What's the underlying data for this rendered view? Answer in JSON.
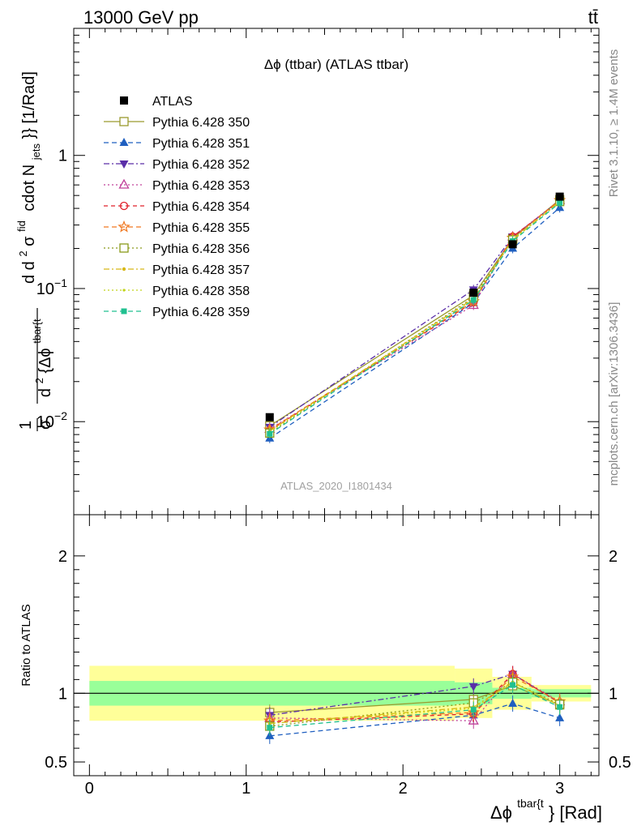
{
  "header": {
    "left": "13000 GeV pp",
    "right": "tt̄"
  },
  "side_labels": {
    "rivet": "Rivet 3.1.10, ≥ 1.4M events",
    "mcplots": "mcplots.cern.ch [arXiv:1306.3436]"
  },
  "chart_data": [
    {
      "type": "line",
      "title": "Δϕ (ttbar) (ATLAS ttbar)",
      "watermark": "ATLAS_2020_I1801434",
      "ylabel": "d¹/σ d²σfid/d²{Δϕtbar{t}} cdot Njets}} [1/Rad]",
      "ylabel_parts": {
        "frac1_num": "1",
        "frac1_den": "σ",
        "d": "d",
        "frac2_num_d": "d",
        "frac2_num_exp": "2",
        "frac2_num_sigma": "σ",
        "frac2_num_sup": "fid",
        "frac2_den_d": "d",
        "frac2_den_exp": "2",
        "frac2_den_body": "{Δϕ",
        "frac2_den_sup": "tbar{t",
        "tail_a": "cdot N",
        "tail_sub": "jets",
        "tail_b": "}} [1/Rad]"
      },
      "xlabel_parts": {
        "sym": "Δϕ",
        "sup": "tbar{t",
        "tail": "} [Rad]"
      },
      "xlim": [
        -0.1,
        3.25
      ],
      "ylim": [
        0.002,
        9.0
      ],
      "yscale": "log",
      "y_ticks": [
        {
          "value": 0.01,
          "base": "10",
          "exp": "−2"
        },
        {
          "value": 0.1,
          "base": "10",
          "exp": "−1"
        },
        {
          "value": 1,
          "base": "1",
          "exp": ""
        }
      ],
      "x": [
        1.15,
        2.45,
        2.7,
        3.0
      ],
      "data": {
        "name": "ATLAS",
        "values": [
          0.0108,
          0.093,
          0.215,
          0.49
        ]
      },
      "legend_position": "top-left",
      "series": [
        {
          "name": "Pythia 6.428 350",
          "color": "#9a9a2e",
          "marker": "open-square",
          "dash": "",
          "values": [
            0.0093,
            0.089,
            0.238,
            0.465
          ]
        },
        {
          "name": "Pythia 6.428 351",
          "color": "#1f5fc0",
          "marker": "filled-triangle-up",
          "dash": "6,4",
          "values": [
            0.0075,
            0.078,
            0.2,
            0.405
          ]
        },
        {
          "name": "Pythia 6.428 352",
          "color": "#5a2ea8",
          "marker": "filled-triangle-down",
          "dash": "7,3,2,3",
          "values": [
            0.0091,
            0.098,
            0.245,
            0.455
          ]
        },
        {
          "name": "Pythia 6.428 353",
          "color": "#c0409a",
          "marker": "open-triangle-up",
          "dash": "2,3",
          "values": [
            0.0088,
            0.075,
            0.245,
            0.46
          ]
        },
        {
          "name": "Pythia 6.428 354",
          "color": "#e0202a",
          "marker": "open-circle",
          "dash": "5,4",
          "values": [
            0.0086,
            0.079,
            0.245,
            0.455
          ]
        },
        {
          "name": "Pythia 6.428 355",
          "color": "#f07820",
          "marker": "open-star",
          "dash": "6,4",
          "values": [
            0.0087,
            0.08,
            0.24,
            0.46
          ]
        },
        {
          "name": "Pythia 6.428 356",
          "color": "#8a9a1a",
          "marker": "open-square",
          "dash": "2,3",
          "values": [
            0.0082,
            0.086,
            0.232,
            0.45
          ]
        },
        {
          "name": "Pythia 6.428 357",
          "color": "#d8b818",
          "marker": "dot",
          "dash": "7,3,2,3",
          "values": [
            0.0085,
            0.084,
            0.232,
            0.45
          ]
        },
        {
          "name": "Pythia 6.428 358",
          "color": "#c2d41c",
          "marker": "small-dot",
          "dash": "2,3",
          "values": [
            0.0084,
            0.083,
            0.232,
            0.447
          ]
        },
        {
          "name": "Pythia 6.428 359",
          "color": "#20c090",
          "marker": "filled-square",
          "dash": "6,4",
          "values": [
            0.0081,
            0.082,
            0.227,
            0.44
          ]
        }
      ]
    },
    {
      "type": "line",
      "ylabel": "Ratio to ATLAS",
      "xlim": [
        -0.1,
        3.25
      ],
      "ylim": [
        0.4,
        2.3
      ],
      "x_ticks": [
        "0",
        "1",
        "2",
        "3"
      ],
      "y_ticks": [
        "0.5",
        "1",
        "2"
      ],
      "bands": {
        "x_edges": [
          0.0,
          2.33,
          2.57,
          2.82,
          3.2
        ],
        "inner_lo": [
          0.91,
          0.92,
          0.96,
          0.97
        ],
        "inner_hi": [
          1.09,
          1.08,
          1.04,
          1.03
        ],
        "outer_lo": [
          0.8,
          0.82,
          0.88,
          0.94
        ],
        "outer_hi": [
          1.2,
          1.18,
          1.12,
          1.06
        ]
      },
      "series_ratios": [
        [
          0.86,
          0.955,
          1.055,
          0.915
        ],
        [
          0.69,
          0.84,
          0.925,
          0.82
        ],
        [
          0.84,
          1.05,
          1.14,
          0.93
        ],
        [
          0.82,
          0.8,
          1.14,
          0.94
        ],
        [
          0.79,
          0.85,
          1.14,
          0.93
        ],
        [
          0.8,
          0.86,
          1.12,
          0.94
        ],
        [
          0.76,
          0.93,
          1.08,
          0.92
        ],
        [
          0.78,
          0.9,
          1.08,
          0.91
        ],
        [
          0.78,
          0.89,
          1.08,
          0.91
        ],
        [
          0.75,
          0.88,
          1.06,
          0.9
        ]
      ]
    }
  ]
}
